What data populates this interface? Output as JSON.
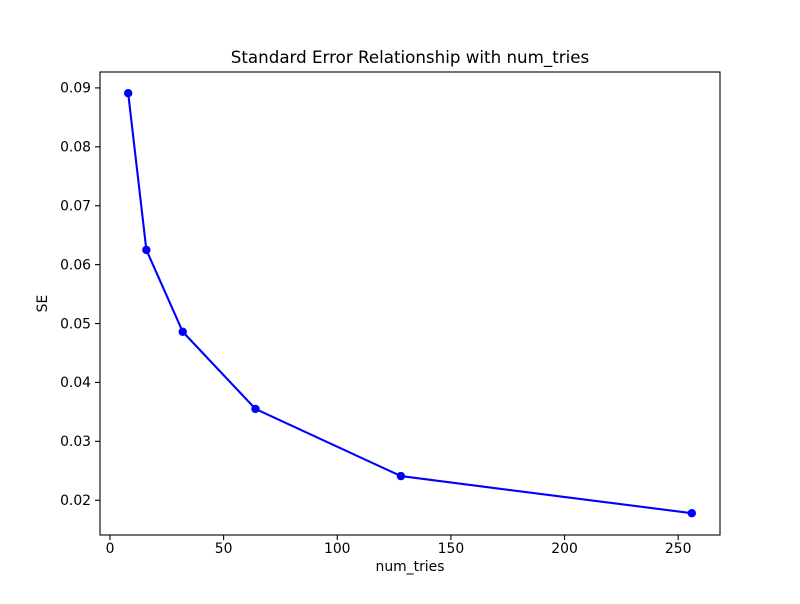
{
  "figure": {
    "background_color": "#ffffff"
  },
  "chart_data": {
    "type": "line",
    "title": "Standard Error Relationship with num_tries",
    "xlabel": "num_tries",
    "ylabel": "SE",
    "x": [
      8,
      16,
      32,
      64,
      128,
      256
    ],
    "series": [
      {
        "name": "SE",
        "values": [
          0.0891,
          0.0625,
          0.0486,
          0.0355,
          0.0241,
          0.0178
        ],
        "color": "#0000ff",
        "marker": "circle",
        "marker_radius": 4.2,
        "line_width": 2.1
      }
    ],
    "xlim": [
      -4.4,
      268.4
    ],
    "ylim": [
      0.0141,
      0.0927
    ],
    "xticks": {
      "values": [
        0,
        50,
        100,
        150,
        200,
        250
      ],
      "labels": [
        "0",
        "50",
        "100",
        "150",
        "200",
        "250"
      ]
    },
    "yticks": {
      "values": [
        0.02,
        0.03,
        0.04,
        0.05,
        0.06,
        0.07,
        0.08,
        0.09
      ],
      "labels": [
        "0.02",
        "0.03",
        "0.04",
        "0.05",
        "0.06",
        "0.07",
        "0.08",
        "0.09"
      ]
    },
    "grid": false,
    "legend_position": "none",
    "text_color": "#000000",
    "spine_color": "#000000"
  }
}
